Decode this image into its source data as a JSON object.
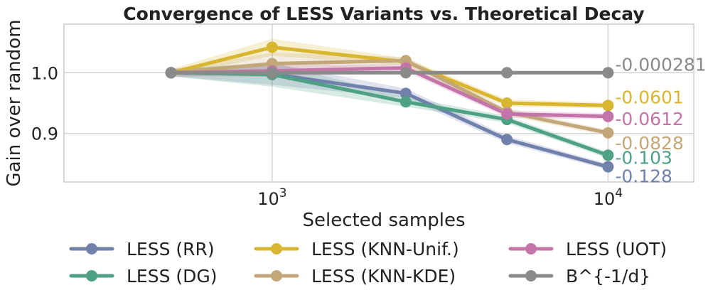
{
  "chart_data": {
    "type": "line",
    "title": "Convergence of LESS Variants vs. Theoretical Decay",
    "xlabel": "Selected samples",
    "ylabel": "Gain over random",
    "xscale": "log",
    "xlim": [
      240,
      18000
    ],
    "ylim": [
      0.82,
      1.08
    ],
    "grid": true,
    "x_ticks": [
      1000,
      10000
    ],
    "x_tick_labels": [
      "10",
      "10"
    ],
    "x_tick_exponents": [
      "3",
      "4"
    ],
    "y_ticks": [
      0.9,
      1.0
    ],
    "y_tick_labels": [
      "0.9",
      "1.0"
    ],
    "x": [
      500,
      1000,
      2500,
      5000,
      10000
    ],
    "legend_position": "bottom",
    "series": [
      {
        "name": "LESS (RR)",
        "color": "#7081ab",
        "values": [
          1.0,
          0.998,
          0.966,
          0.89,
          0.845
        ],
        "band": [
          0.006,
          0.018,
          0.008,
          0.006,
          0.005
        ],
        "end_label": "-0.128"
      },
      {
        "name": "LESS (DG)",
        "color": "#4fa185",
        "values": [
          1.0,
          0.997,
          0.952,
          0.923,
          0.864
        ],
        "band": [
          0.006,
          0.02,
          0.008,
          0.006,
          0.005
        ],
        "end_label": "-0.103"
      },
      {
        "name": "LESS (KNN-Unif.)",
        "color": "#d9b62f",
        "values": [
          1.0,
          1.042,
          1.018,
          0.95,
          0.946
        ],
        "band": [
          0.006,
          0.014,
          0.006,
          0.006,
          0.005
        ],
        "end_label": "-0.0601"
      },
      {
        "name": "LESS (KNN-KDE)",
        "color": "#c3a779",
        "values": [
          1.0,
          1.015,
          1.02,
          0.935,
          0.901
        ],
        "band": [
          0.006,
          0.018,
          0.006,
          0.006,
          0.005
        ],
        "end_label": "-0.0828"
      },
      {
        "name": "LESS (UOT)",
        "color": "#c374a8",
        "values": [
          1.0,
          1.003,
          1.008,
          0.932,
          0.928
        ],
        "band": [
          0.006,
          0.01,
          0.006,
          0.006,
          0.005
        ],
        "end_label": "-0.0612"
      },
      {
        "name": "B^{-1/d}",
        "color": "#8a8a8a",
        "values": [
          1.0,
          1.0,
          1.0,
          1.0,
          1.0
        ],
        "band": [
          0,
          0,
          0,
          0,
          0
        ],
        "end_label": "-0.000281"
      }
    ]
  }
}
